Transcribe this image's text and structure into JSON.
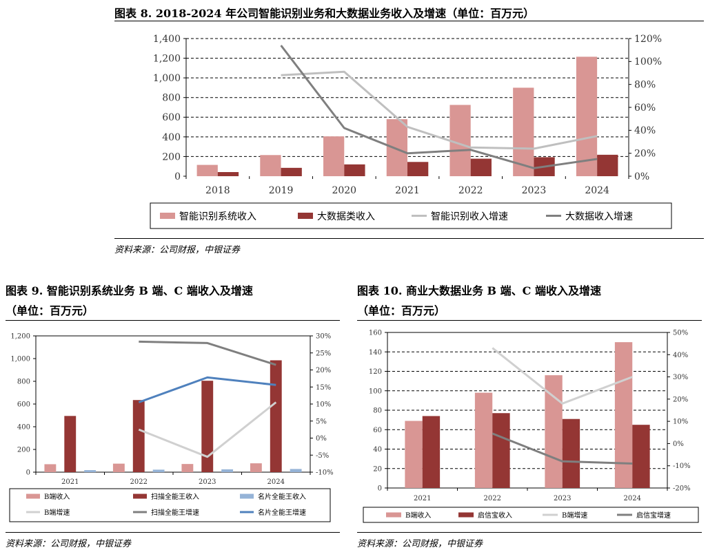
{
  "fig8": {
    "title": "图表 8. 2018-2024 年公司智能识别业务和大数据业务收入及增速（单位：百万元）",
    "source": "资料来源：公司财报，中银证券"
  },
  "fig9": {
    "title_line1": "图表 9. 智能识别系统业务 B 端、C 端收入及增速",
    "title_line2": "（单位：百万元）",
    "source": "资料来源：公司财报，中银证券"
  },
  "fig10": {
    "title_line1": "图表 10. 商业大数据业务 B 端、C 端收入及增速",
    "title_line2": "（单位：百万元）",
    "source": "资料来源：公司财报，中银证券"
  },
  "chart_data": [
    {
      "id": "fig8",
      "type": "bar",
      "categories": [
        "2018",
        "2019",
        "2020",
        "2021",
        "2022",
        "2023",
        "2024"
      ],
      "ylim": [
        0,
        1400
      ],
      "y_ticks": [
        "0",
        "200",
        "400",
        "600",
        "800",
        "1,000",
        "1,200",
        "1,400"
      ],
      "y2lim": [
        0,
        120
      ],
      "y2_ticks": [
        "0%",
        "20%",
        "40%",
        "60%",
        "80%",
        "100%",
        "120%"
      ],
      "grid": "dashed horizontal",
      "legend_position": "bottom",
      "series": [
        {
          "name": "智能识别系统收入",
          "kind": "bar",
          "axis": "left",
          "color": "#d99694",
          "values": [
            115,
            215,
            405,
            580,
            725,
            900,
            1215
          ]
        },
        {
          "name": "大数据类收入",
          "kind": "bar",
          "axis": "left",
          "color": "#943634",
          "values": [
            42,
            85,
            120,
            145,
            178,
            193,
            218
          ]
        },
        {
          "name": "智能识别收入增速",
          "kind": "line",
          "axis": "right",
          "color": "#bfbfbf",
          "values": [
            null,
            88,
            91,
            43,
            25,
            24,
            35
          ]
        },
        {
          "name": "大数据收入增速",
          "kind": "line",
          "axis": "right",
          "color": "#7f7f7f",
          "values": [
            null,
            114,
            42,
            20,
            23,
            7,
            15
          ]
        }
      ]
    },
    {
      "id": "fig9",
      "type": "bar",
      "categories": [
        "2021",
        "2022",
        "2023",
        "2024"
      ],
      "ylim": [
        0,
        1200
      ],
      "y_ticks": [
        "0",
        "200",
        "400",
        "600",
        "800",
        "1,000",
        "1,200"
      ],
      "y2lim": [
        -10,
        30
      ],
      "y2_ticks": [
        "-10%",
        "-5%",
        "0%",
        "5%",
        "10%",
        "15%",
        "20%",
        "25%",
        "30%"
      ],
      "legend_position": "bottom",
      "series": [
        {
          "name": "B端收入",
          "kind": "bar",
          "axis": "left",
          "color": "#d99694",
          "values": [
            70,
            75,
            72,
            78
          ]
        },
        {
          "name": "扫描全能王收入",
          "kind": "bar",
          "axis": "left",
          "color": "#943634",
          "values": [
            495,
            635,
            805,
            985
          ]
        },
        {
          "name": "名片全能王收入",
          "kind": "bar",
          "axis": "left",
          "color": "#95b3d7",
          "values": [
            18,
            22,
            25,
            28
          ]
        },
        {
          "name": "B端增速",
          "kind": "line",
          "axis": "right",
          "color": "#d0d0d0",
          "values": [
            null,
            2.5,
            -5.5,
            10.5
          ]
        },
        {
          "name": "扫描全能王增速",
          "kind": "line",
          "axis": "right",
          "color": "#7f7f7f",
          "values": [
            null,
            28.3,
            27.9,
            21.5
          ]
        },
        {
          "name": "名片全能王增速",
          "kind": "line",
          "axis": "right",
          "color": "#4f81bd",
          "values": [
            null,
            10.5,
            17.8,
            15.6
          ]
        }
      ]
    },
    {
      "id": "fig10",
      "type": "bar",
      "categories": [
        "2021",
        "2022",
        "2023",
        "2024"
      ],
      "ylim": [
        0,
        160
      ],
      "y_ticks": [
        "0",
        "20",
        "40",
        "60",
        "80",
        "100",
        "120",
        "140",
        "160"
      ],
      "y2lim": [
        -20,
        50
      ],
      "y2_ticks": [
        "-20%",
        "-10%",
        "0%",
        "10%",
        "20%",
        "30%",
        "40%",
        "50%"
      ],
      "grid": "dashed horizontal",
      "legend_position": "bottom",
      "series": [
        {
          "name": "B端收入",
          "kind": "bar",
          "axis": "left",
          "color": "#d99694",
          "values": [
            69,
            98,
            116,
            150
          ]
        },
        {
          "name": "启信宝收入",
          "kind": "bar",
          "axis": "left",
          "color": "#943634",
          "values": [
            74,
            77,
            71,
            65
          ]
        },
        {
          "name": "B端增速",
          "kind": "line",
          "axis": "right",
          "color": "#d0d0d0",
          "values": [
            null,
            43,
            18,
            30
          ]
        },
        {
          "name": "启信宝增速",
          "kind": "line",
          "axis": "right",
          "color": "#7f7f7f",
          "values": [
            null,
            4.5,
            -8,
            -9
          ]
        }
      ]
    }
  ]
}
